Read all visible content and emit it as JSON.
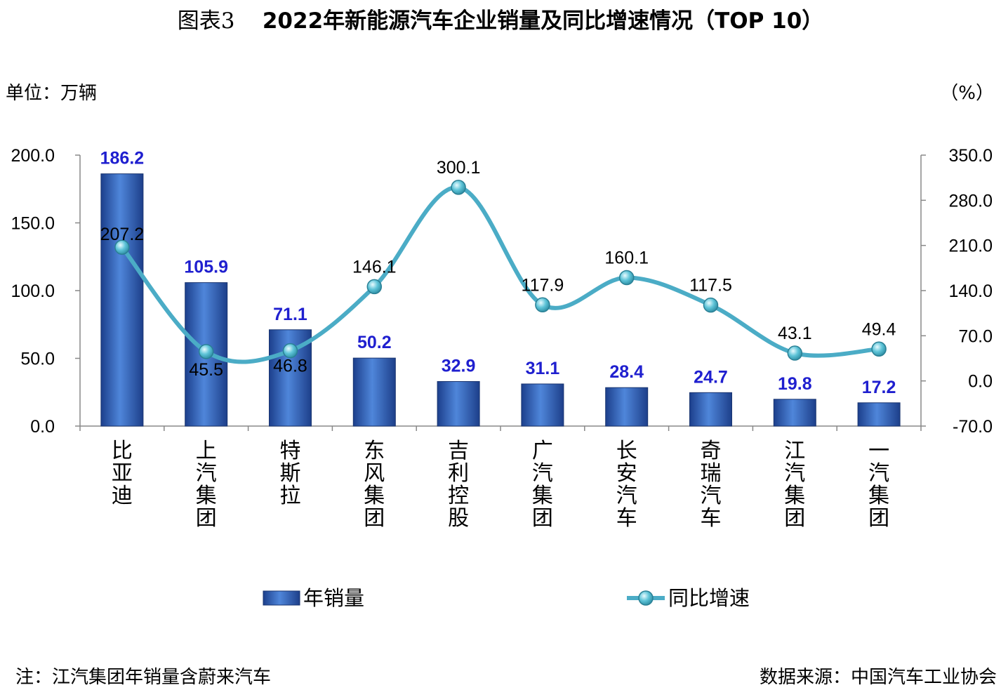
{
  "title_prefix": "图表3",
  "title_main": "2022年新能源汽车企业销量及同比增速情况（TOP 10）",
  "unit_left": "单位：万辆",
  "unit_right": "（%）",
  "note": "注：江汽集团年销量含蔚来汽车",
  "source": "数据来源：中国汽车工业协会",
  "colors": {
    "bar": "#3f6fc4",
    "line": "#4bacc6",
    "bar_label": "#1f1fcf"
  },
  "chart_data": {
    "type": "bar",
    "categories": [
      "比亚迪",
      "上汽集团",
      "特斯拉",
      "东风集团",
      "吉利控股",
      "广汽集团",
      "长安汽车",
      "奇瑞汽车",
      "江汽集团",
      "一汽集团"
    ],
    "series": [
      {
        "name": "年销量",
        "type": "bar",
        "axis": "left",
        "values": [
          186.2,
          105.9,
          71.1,
          50.2,
          32.9,
          31.1,
          28.4,
          24.7,
          19.8,
          17.2
        ]
      },
      {
        "name": "同比增速",
        "type": "line",
        "axis": "right",
        "values": [
          207.2,
          45.5,
          46.8,
          146.1,
          300.1,
          117.9,
          160.1,
          117.5,
          43.1,
          49.4
        ]
      }
    ],
    "y_left": {
      "min": 0,
      "max": 200,
      "ticks": [
        "0.0",
        "50.0",
        "100.0",
        "150.0",
        "200.0"
      ]
    },
    "y_right": {
      "min": -70,
      "max": 350,
      "ticks": [
        "-70.0",
        "0.0",
        "70.0",
        "140.0",
        "210.0",
        "280.0",
        "350.0"
      ]
    },
    "legend_position": "bottom"
  }
}
